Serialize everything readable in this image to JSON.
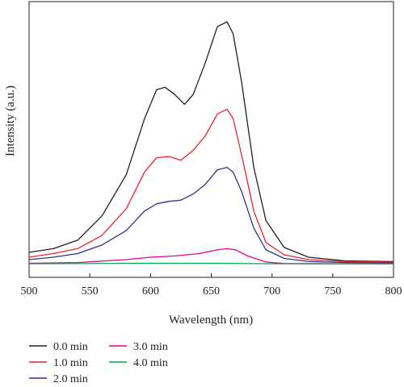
{
  "chart_data": {
    "type": "line",
    "xlabel": "Wavelength (nm)",
    "ylabel": "Intensity (a.u.)",
    "xlim": [
      500,
      800
    ],
    "ylim": [
      0,
      1.05
    ],
    "x_ticks": [
      "500",
      "550",
      "600",
      "650",
      "700",
      "750",
      "800"
    ],
    "y_ticks_visible": false,
    "grid": false,
    "legend_position": "bottom-left",
    "series": [
      {
        "name": "0.0 min",
        "color": "#231f20",
        "points": [
          [
            500,
            0.05
          ],
          [
            520,
            0.065
          ],
          [
            540,
            0.1
          ],
          [
            560,
            0.2
          ],
          [
            580,
            0.37
          ],
          [
            595,
            0.6
          ],
          [
            605,
            0.72
          ],
          [
            612,
            0.73
          ],
          [
            620,
            0.7
          ],
          [
            628,
            0.66
          ],
          [
            635,
            0.7
          ],
          [
            645,
            0.83
          ],
          [
            655,
            0.98
          ],
          [
            663,
            1.0
          ],
          [
            668,
            0.95
          ],
          [
            675,
            0.75
          ],
          [
            685,
            0.4
          ],
          [
            695,
            0.18
          ],
          [
            710,
            0.07
          ],
          [
            730,
            0.03
          ],
          [
            760,
            0.015
          ],
          [
            800,
            0.012
          ]
        ]
      },
      {
        "name": "1.0 min",
        "color": "#e8252a",
        "points": [
          [
            500,
            0.03
          ],
          [
            520,
            0.045
          ],
          [
            540,
            0.065
          ],
          [
            560,
            0.12
          ],
          [
            580,
            0.23
          ],
          [
            595,
            0.38
          ],
          [
            605,
            0.44
          ],
          [
            615,
            0.445
          ],
          [
            625,
            0.43
          ],
          [
            635,
            0.47
          ],
          [
            645,
            0.53
          ],
          [
            655,
            0.62
          ],
          [
            663,
            0.64
          ],
          [
            668,
            0.6
          ],
          [
            675,
            0.45
          ],
          [
            685,
            0.22
          ],
          [
            695,
            0.09
          ],
          [
            710,
            0.04
          ],
          [
            730,
            0.02
          ],
          [
            760,
            0.012
          ],
          [
            800,
            0.01
          ]
        ]
      },
      {
        "name": "2.0 min",
        "color": "#2e3192",
        "points": [
          [
            500,
            0.02
          ],
          [
            520,
            0.03
          ],
          [
            540,
            0.045
          ],
          [
            560,
            0.08
          ],
          [
            580,
            0.14
          ],
          [
            595,
            0.22
          ],
          [
            605,
            0.25
          ],
          [
            615,
            0.26
          ],
          [
            625,
            0.265
          ],
          [
            635,
            0.29
          ],
          [
            645,
            0.33
          ],
          [
            655,
            0.39
          ],
          [
            663,
            0.4
          ],
          [
            668,
            0.38
          ],
          [
            675,
            0.3
          ],
          [
            685,
            0.15
          ],
          [
            695,
            0.06
          ],
          [
            710,
            0.025
          ],
          [
            730,
            0.012
          ],
          [
            760,
            0.008
          ],
          [
            800,
            0.007
          ]
        ]
      },
      {
        "name": "3.0 min",
        "color": "#ec008c",
        "points": [
          [
            500,
            0.005
          ],
          [
            540,
            0.008
          ],
          [
            580,
            0.02
          ],
          [
            600,
            0.03
          ],
          [
            620,
            0.035
          ],
          [
            640,
            0.045
          ],
          [
            655,
            0.06
          ],
          [
            663,
            0.065
          ],
          [
            670,
            0.06
          ],
          [
            680,
            0.035
          ],
          [
            695,
            0.01
          ],
          [
            710,
            0.004
          ],
          [
            800,
            0.002
          ]
        ]
      },
      {
        "name": "4.0 min",
        "color": "#00a651",
        "points": [
          [
            500,
            0.003
          ],
          [
            600,
            0.005
          ],
          [
            650,
            0.005
          ],
          [
            700,
            0.003
          ],
          [
            800,
            0.002
          ]
        ]
      }
    ]
  }
}
